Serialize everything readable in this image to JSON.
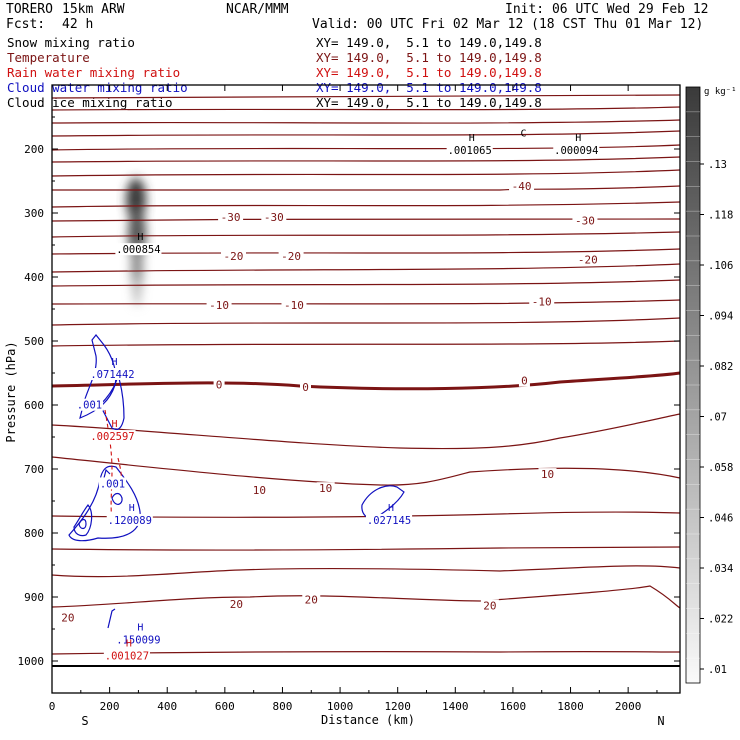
{
  "header": {
    "model": "TORERO",
    "resolution": "15km ARW",
    "org": "NCAR/MMM",
    "init": "Init: 06 UTC Wed 29 Feb 12",
    "fcst_label": "Fcst:",
    "fcst_value": "42 h",
    "valid": "Valid: 00 UTC Fri 02 Mar 12 (18 CST Thu 01 Mar 12)"
  },
  "fields": [
    {
      "name": "Snow mixing ratio",
      "xy": "XY= 149.0,  5.1 to 149.0,149.8",
      "color": "#000000"
    },
    {
      "name": "Temperature",
      "xy": "XY= 149.0,  5.1 to 149.0,149.8",
      "color": "#7b1414"
    },
    {
      "name": "Rain water mixing ratio",
      "xy": "XY= 149.0,  5.1 to 149.0,149.8",
      "color": "#d01010"
    },
    {
      "name": "Cloud water mixing ratio",
      "xy": "XY= 149.0,  5.1 to 149.0,149.8",
      "color": "#1010c0"
    },
    {
      "name": "Cloud ice mixing ratio",
      "xy": "XY= 149.0,  5.1 to 149.0,149.8",
      "color": "#000000"
    }
  ],
  "chart_data": {
    "type": "contour cross-section",
    "xlabel": "Distance (km)",
    "ylabel": "Pressure (hPa)",
    "xlim": [
      0,
      2180
    ],
    "ylim": [
      1050,
      100
    ],
    "x_ticks": [
      0,
      200,
      400,
      600,
      800,
      1000,
      1200,
      1400,
      1600,
      1800,
      2000
    ],
    "y_ticks": [
      200,
      300,
      400,
      500,
      600,
      700,
      800,
      900,
      1000
    ],
    "left_end": "S",
    "right_end": "N",
    "colorbar": {
      "unit": "g kg⁻¹",
      "labels": [
        ".13",
        ".118",
        ".106",
        ".094",
        ".082",
        ".07",
        ".058",
        ".046",
        ".034",
        ".022",
        ".01"
      ]
    },
    "temperature_labels": [
      {
        "text": "-40",
        "x": 1630,
        "p": 258
      },
      {
        "text": "-30",
        "x": 620,
        "p": 306
      },
      {
        "text": "-30",
        "x": 770,
        "p": 306
      },
      {
        "text": "-30",
        "x": 1850,
        "p": 312
      },
      {
        "text": "-20",
        "x": 630,
        "p": 367
      },
      {
        "text": "-20",
        "x": 830,
        "p": 367
      },
      {
        "text": "-20",
        "x": 1860,
        "p": 373
      },
      {
        "text": "-10",
        "x": 580,
        "p": 444
      },
      {
        "text": "-10",
        "x": 840,
        "p": 444
      },
      {
        "text": "-10",
        "x": 1700,
        "p": 438
      },
      {
        "text": "0",
        "x": 580,
        "p": 568
      },
      {
        "text": "0",
        "x": 880,
        "p": 572
      },
      {
        "text": "0",
        "x": 1640,
        "p": 562
      },
      {
        "text": "10",
        "x": 720,
        "p": 733
      },
      {
        "text": "10",
        "x": 950,
        "p": 730
      },
      {
        "text": "10",
        "x": 1720,
        "p": 708
      },
      {
        "text": "20",
        "x": 55,
        "p": 932
      },
      {
        "text": "20",
        "x": 640,
        "p": 911
      },
      {
        "text": "20",
        "x": 900,
        "p": 904
      },
      {
        "text": "20",
        "x": 1520,
        "p": 913
      }
    ],
    "extrema": [
      {
        "mark": "H",
        "value": ".001065",
        "x": 1450,
        "p": 200,
        "color": "#000000"
      },
      {
        "mark": "C",
        "value": "",
        "x": 1630,
        "p": 193,
        "color": "#000000"
      },
      {
        "mark": "H",
        "value": ".000094",
        "x": 1820,
        "p": 200,
        "color": "#000000"
      },
      {
        "mark": "H",
        "value": ".000854",
        "x": 300,
        "p": 355,
        "color": "#000000"
      },
      {
        "mark": "H",
        "value": ".071442",
        "x": 210,
        "p": 550,
        "color": "#1010c0"
      },
      {
        "mark": "",
        "value": ".001",
        "x": 130,
        "p": 598,
        "color": "#1010c0"
      },
      {
        "mark": "H",
        "value": ".002597",
        "x": 210,
        "p": 647,
        "color": "#d01010"
      },
      {
        "mark": "",
        "value": ".001",
        "x": 210,
        "p": 721,
        "color": "#1010c0"
      },
      {
        "mark": "H",
        "value": ".120089",
        "x": 270,
        "p": 778,
        "color": "#1010c0"
      },
      {
        "mark": "H",
        "value": ".027145",
        "x": 1170,
        "p": 778,
        "color": "#1010c0"
      },
      {
        "mark": "H",
        "value": ".150099",
        "x": 300,
        "p": 965,
        "color": "#1010c0"
      },
      {
        "mark": "H",
        "value": ".001027",
        "x": 260,
        "p": 990,
        "color": "#d01010"
      }
    ]
  }
}
